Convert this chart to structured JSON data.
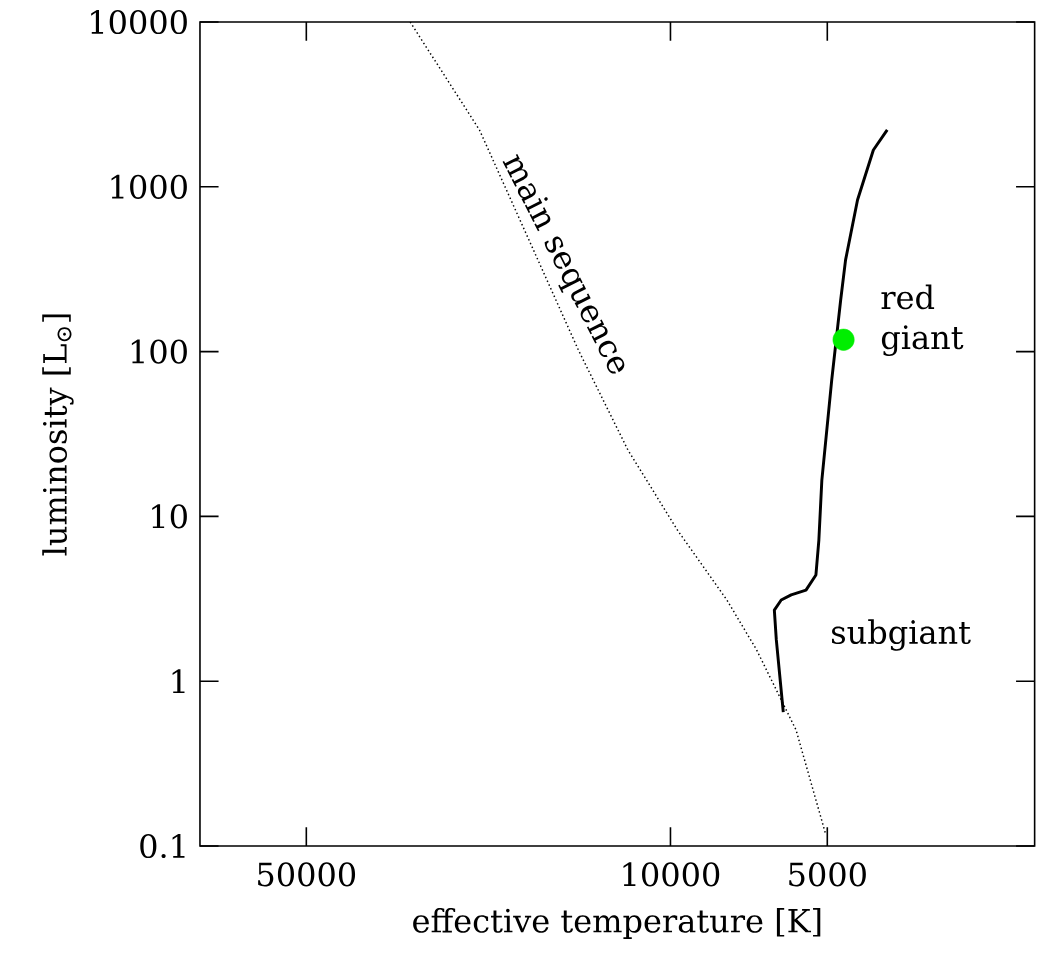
{
  "chart_data": {
    "type": "line",
    "xlabel": "effective temperature [K]",
    "ylabel": "luminosity [L$_{⊙}$]",
    "log": "xy",
    "xlim": [
      80000,
      2000
    ],
    "ylim": [
      0.1,
      10000
    ],
    "xticks": [
      50000,
      10000,
      5000
    ],
    "yticks": [
      0.1,
      1,
      10,
      100,
      1000,
      10000
    ],
    "grid": false,
    "series": [
      {
        "color": "#000000",
        "line_style": "dotted",
        "marker": "none",
        "x": [
          31600,
          23260,
          18690,
          15020,
          12070,
          9700,
          7795,
          6835,
          5741,
          5033
        ],
        "values": [
          10000,
          2213,
          475,
          102,
          25.3,
          8.27,
          3.11,
          1.55,
          0.506,
          0.117
        ]
      },
      {
        "color": "#000000",
        "line_style": "solid",
        "marker": "none",
        "x": [
          6074,
          6264,
          6319,
          6130,
          5866,
          5494,
          5258,
          5190,
          5122,
          4989,
          4903,
          4713,
          4612,
          4375,
          4079,
          3837
        ],
        "values": [
          0.65,
          1.78,
          2.7,
          3.11,
          3.34,
          3.57,
          4.41,
          7.19,
          16.6,
          38.5,
          67.3,
          205.6,
          360,
          832,
          1672,
          2213
        ]
      },
      {
        "type": "scatter",
        "color": "#00ee00",
        "marker": "circle",
        "x": [
          4653
        ],
        "values": [
          118
        ]
      }
    ],
    "annotations": [
      "main sequence",
      "red giant",
      "subgiant"
    ]
  }
}
